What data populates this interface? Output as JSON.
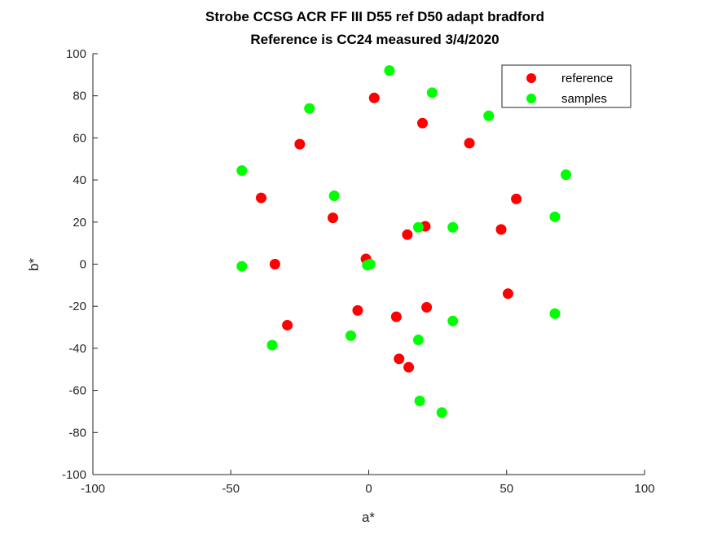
{
  "chart_data": {
    "type": "scatter",
    "title": [
      "Strobe CCSG ACR FF III D55 ref D50 adapt bradford",
      "Reference is CC24 measured 3/4/2020"
    ],
    "xlabel": "a*",
    "ylabel": "b*",
    "xlim": [
      -100,
      100
    ],
    "ylim": [
      -100,
      100
    ],
    "xticks": [
      "-100",
      "-50",
      "0",
      "50",
      "100"
    ],
    "yticks": [
      "-100",
      "-80",
      "-60",
      "-40",
      "-20",
      "0",
      "20",
      "40",
      "60",
      "80",
      "100"
    ],
    "grid": false,
    "legend_position": "top-right",
    "series": [
      {
        "name": "reference",
        "color": "#ff0000",
        "points": [
          [
            2,
            79
          ],
          [
            -25,
            57
          ],
          [
            19.5,
            67
          ],
          [
            36.5,
            57.5
          ],
          [
            -39,
            31.5
          ],
          [
            -13,
            22
          ],
          [
            14,
            14
          ],
          [
            20.5,
            18
          ],
          [
            48,
            16.5
          ],
          [
            53.5,
            31
          ],
          [
            -34,
            0
          ],
          [
            -1,
            2.5
          ],
          [
            0,
            0
          ],
          [
            -4,
            -22
          ],
          [
            10,
            -25
          ],
          [
            21,
            -20.5
          ],
          [
            50.5,
            -14
          ],
          [
            -29.5,
            -29
          ],
          [
            11,
            -45
          ],
          [
            14.5,
            -49
          ]
        ]
      },
      {
        "name": "samples",
        "color": "#00ff00",
        "points": [
          [
            7.5,
            92
          ],
          [
            23,
            81.5
          ],
          [
            -21.5,
            74
          ],
          [
            43.5,
            70.5
          ],
          [
            -46,
            44.5
          ],
          [
            71.5,
            42.5
          ],
          [
            -12.5,
            32.5
          ],
          [
            18,
            17.5
          ],
          [
            30.5,
            17.5
          ],
          [
            67.5,
            22.5
          ],
          [
            -46,
            -1
          ],
          [
            -0.5,
            -0.5
          ],
          [
            0.5,
            0
          ],
          [
            -6.5,
            -34
          ],
          [
            18,
            -36
          ],
          [
            30.5,
            -27
          ],
          [
            67.5,
            -23.5
          ],
          [
            -35,
            -38.5
          ],
          [
            18.5,
            -65
          ],
          [
            26.5,
            -70.5
          ]
        ]
      }
    ]
  }
}
